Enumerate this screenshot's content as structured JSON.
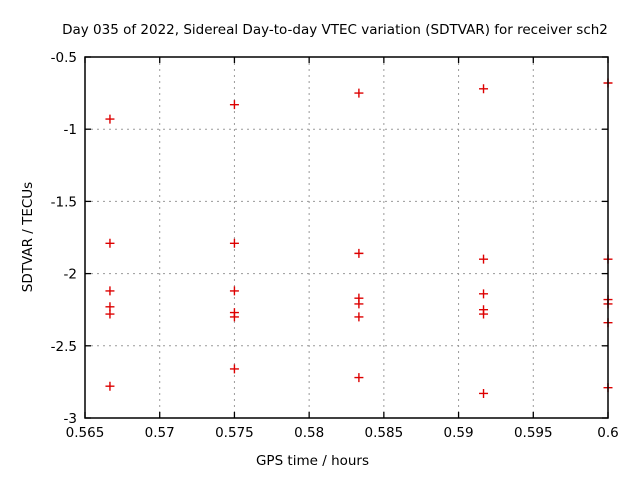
{
  "chart_data": {
    "type": "scatter",
    "title": "Day 035 of 2022, Sidereal Day-to-day VTEC variation (SDTVAR) for receiver sch2",
    "xlabel": "GPS time / hours",
    "ylabel": "SDTVAR / TECUs",
    "xlim": [
      0.565,
      0.6
    ],
    "ylim": [
      -3,
      -0.5
    ],
    "x_ticks": [
      0.565,
      0.57,
      0.575,
      0.58,
      0.585,
      0.59,
      0.595,
      0.6
    ],
    "x_tick_labels": [
      "0.565",
      "0.57",
      "0.575",
      "0.58",
      "0.585",
      "0.59",
      "0.595",
      "0.6"
    ],
    "y_ticks": [
      -0.5,
      -1,
      -1.5,
      -2,
      -2.5,
      -3
    ],
    "y_tick_labels": [
      "-0.5",
      "-1",
      "-1.5",
      "-2",
      "-2.5",
      "-3"
    ],
    "grid": true,
    "legend": "none",
    "marker": "plus",
    "colors": {
      "marker": "#dd0000",
      "grid": "#9a9a9a",
      "axis": "#000000",
      "background": "#ffffff"
    },
    "points": [
      [
        0.56667,
        -0.93
      ],
      [
        0.56667,
        -1.79
      ],
      [
        0.56667,
        -2.12
      ],
      [
        0.56667,
        -2.23
      ],
      [
        0.56667,
        -2.28
      ],
      [
        0.56667,
        -2.78
      ],
      [
        0.575,
        -0.83
      ],
      [
        0.575,
        -1.79
      ],
      [
        0.575,
        -2.12
      ],
      [
        0.575,
        -2.27
      ],
      [
        0.575,
        -2.3
      ],
      [
        0.575,
        -2.66
      ],
      [
        0.58333,
        -0.75
      ],
      [
        0.58333,
        -1.86
      ],
      [
        0.58333,
        -2.17
      ],
      [
        0.58333,
        -2.21
      ],
      [
        0.58333,
        -2.3
      ],
      [
        0.58333,
        -2.72
      ],
      [
        0.59167,
        -0.72
      ],
      [
        0.59167,
        -1.9
      ],
      [
        0.59167,
        -2.14
      ],
      [
        0.59167,
        -2.25
      ],
      [
        0.59167,
        -2.28
      ],
      [
        0.59167,
        -2.83
      ],
      [
        0.6,
        -0.68
      ],
      [
        0.6,
        -1.9
      ],
      [
        0.6,
        -2.18
      ],
      [
        0.6,
        -2.21
      ],
      [
        0.6,
        -2.34
      ],
      [
        0.6,
        -2.79
      ]
    ]
  }
}
